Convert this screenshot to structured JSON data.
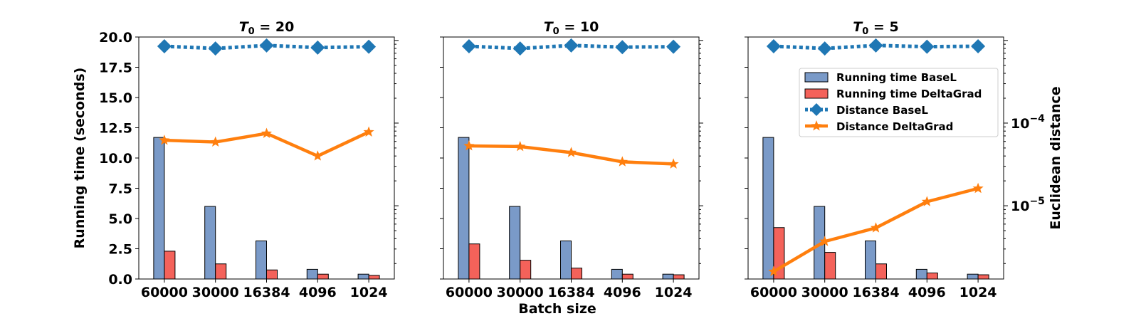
{
  "figure": {
    "shared_xlabel": "Batch size",
    "left_ylabel": "Running time (seconds)",
    "right_ylabel": "Euclidean distance",
    "legend": [
      {
        "label": "Running time BaseL",
        "kind": "bar",
        "color": "#7a9ac8"
      },
      {
        "label": "Running time DeltaGrad",
        "kind": "bar",
        "color": "#f4625a"
      },
      {
        "label": "Distance BaseL",
        "kind": "dotted-diamond",
        "color": "#1f77b4"
      },
      {
        "label": "Distance DeltaGrad",
        "kind": "line-star",
        "color": "#ff7f0e"
      }
    ],
    "colors": {
      "bar_basel": "#7a9ac8",
      "bar_deltagrad": "#f4625a",
      "dist_basel": "#1f77b4",
      "dist_deltagrad": "#ff7f0e"
    }
  },
  "chart_data": [
    {
      "type": "bar",
      "title_prefix": "T",
      "title_sub": "0",
      "title_value": " = 20",
      "categories": [
        "60000",
        "30000",
        "16384",
        "4096",
        "1024"
      ],
      "ylabel": "Running time (seconds)",
      "ylim": [
        0,
        20
      ],
      "yticks": [
        "0.0",
        "2.5",
        "5.0",
        "7.5",
        "10.0",
        "12.5",
        "15.0",
        "17.5",
        "20.0"
      ],
      "series": [
        {
          "name": "Running time BaseL",
          "type": "bar",
          "axis": "left",
          "values": [
            11.7,
            6.0,
            3.15,
            0.8,
            0.4
          ]
        },
        {
          "name": "Running time DeltaGrad",
          "type": "bar",
          "axis": "left",
          "values": [
            2.3,
            1.25,
            0.75,
            0.4,
            0.3
          ]
        },
        {
          "name": "Distance BaseL",
          "type": "line",
          "axis": "right",
          "values": [
            0.00085,
            0.0008,
            0.00087,
            0.00082,
            0.00084
          ]
        },
        {
          "name": "Distance DeltaGrad",
          "type": "line",
          "axis": "right",
          "values": [
            6.2e-05,
            5.9e-05,
            7.5e-05,
            4e-05,
            7.8e-05
          ]
        }
      ],
      "y2_scale": "log",
      "y2lim": [
        1.3e-06,
        0.0011
      ]
    },
    {
      "type": "bar",
      "title_prefix": "T",
      "title_sub": "0",
      "title_value": " = 10",
      "categories": [
        "60000",
        "30000",
        "16384",
        "4096",
        "1024"
      ],
      "ylim": [
        0,
        20
      ],
      "series": [
        {
          "name": "Running time BaseL",
          "type": "bar",
          "axis": "left",
          "values": [
            11.7,
            6.0,
            3.15,
            0.8,
            0.4
          ]
        },
        {
          "name": "Running time DeltaGrad",
          "type": "bar",
          "axis": "left",
          "values": [
            2.9,
            1.55,
            0.9,
            0.4,
            0.35
          ]
        },
        {
          "name": "Distance BaseL",
          "type": "line",
          "axis": "right",
          "values": [
            0.00085,
            0.0008,
            0.00087,
            0.00083,
            0.00084
          ]
        },
        {
          "name": "Distance DeltaGrad",
          "type": "line",
          "axis": "right",
          "values": [
            5.3e-05,
            5.2e-05,
            4.4e-05,
            3.4e-05,
            3.2e-05
          ]
        }
      ],
      "y2_scale": "log",
      "y2lim": [
        1.3e-06,
        0.0011
      ]
    },
    {
      "type": "bar",
      "title_prefix": "T",
      "title_sub": "0",
      "title_value": " = 5",
      "categories": [
        "60000",
        "30000",
        "16384",
        "4096",
        "1024"
      ],
      "ylim": [
        0,
        20
      ],
      "series": [
        {
          "name": "Running time BaseL",
          "type": "bar",
          "axis": "left",
          "values": [
            11.7,
            6.0,
            3.15,
            0.8,
            0.4
          ]
        },
        {
          "name": "Running time DeltaGrad",
          "type": "bar",
          "axis": "left",
          "values": [
            4.25,
            2.2,
            1.25,
            0.5,
            0.35
          ]
        },
        {
          "name": "Distance BaseL",
          "type": "line",
          "axis": "right",
          "values": [
            0.00085,
            0.0008,
            0.00087,
            0.00084,
            0.00085
          ]
        },
        {
          "name": "Distance DeltaGrad",
          "type": "line",
          "axis": "right",
          "values": [
            1.6e-06,
            3.7e-06,
            5.4e-06,
            1.12e-05,
            1.62e-05
          ]
        }
      ],
      "y2_scale": "log",
      "y2lim": [
        1.3e-06,
        0.0011
      ],
      "y2ticks": [
        {
          "value": 0.0001,
          "label_base": "10",
          "label_exp": "−4"
        },
        {
          "value": 1e-05,
          "label_base": "10",
          "label_exp": "−5"
        }
      ]
    }
  ]
}
